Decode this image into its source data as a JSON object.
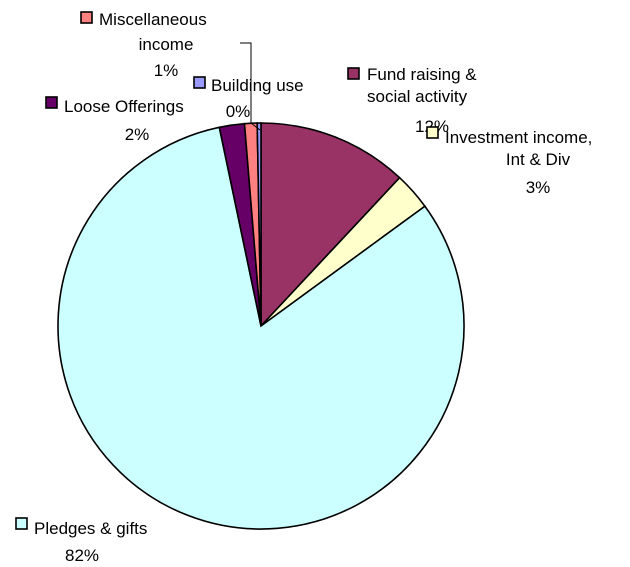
{
  "chart_data": {
    "type": "pie",
    "title": "",
    "start_angle_deg": 0,
    "direction": "clockwise",
    "slices": [
      {
        "label_lines": [
          "Fund raising &",
          "social activity"
        ],
        "percent_label": "12%",
        "value": 12,
        "color": "#993366"
      },
      {
        "label_lines": [
          "Investment income,",
          "Int & Div"
        ],
        "percent_label": "3%",
        "value": 3,
        "color": "#FFFFCC"
      },
      {
        "label_lines": [
          "Pledges & gifts"
        ],
        "percent_label": "82%",
        "value": 82,
        "color": "#CCFFFF"
      },
      {
        "label_lines": [
          "Loose Offerings"
        ],
        "percent_label": "2%",
        "value": 2,
        "color": "#660066"
      },
      {
        "label_lines": [
          "Miscellaneous",
          "income"
        ],
        "percent_label": "1%",
        "value": 1,
        "color": "#FF8080"
      },
      {
        "label_lines": [
          "Building use"
        ],
        "percent_label": "0%",
        "value": 0.3,
        "color": "#9999FF"
      }
    ]
  }
}
